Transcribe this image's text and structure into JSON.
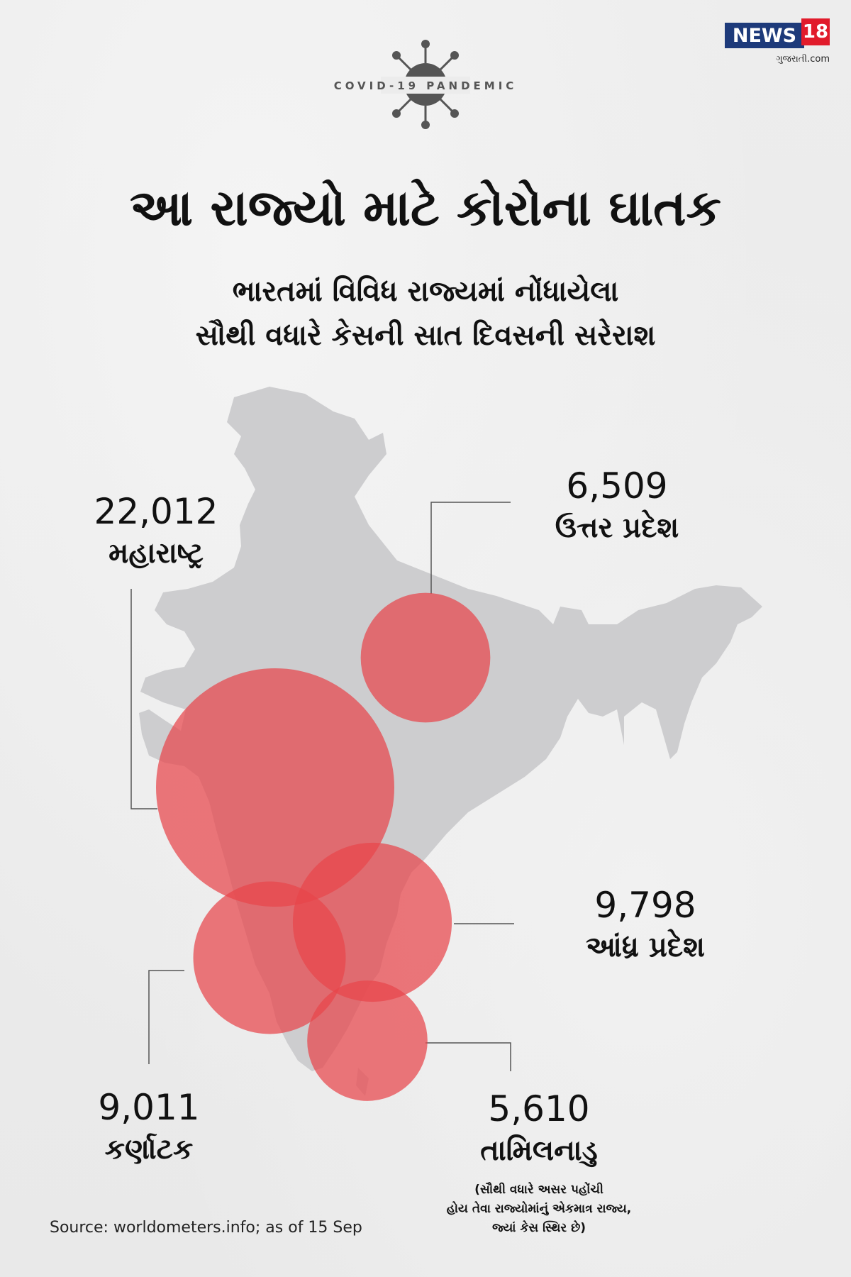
{
  "header": {
    "badge_text": "COVID-19 PANDEMIC",
    "logo_main": "NEWS",
    "logo_number": "18",
    "logo_sub": "ગુજરાતી.com"
  },
  "title": "આ રાજ્યો માટે કોરોના ઘાતક",
  "subtitle": [
    "ભારતમાં વિવિધ રાજ્યમાં નોંધાયેલા",
    "સૌથી વધારે કેસની સાત દિવસની સરેરાશ"
  ],
  "states": [
    {
      "id": "maharashtra",
      "value": "22,012",
      "name": "મહારાષ્ટ્ર",
      "cases": 22012
    },
    {
      "id": "uttar-pradesh",
      "value": "6,509",
      "name": "ઉત્તર પ્રદેશ",
      "cases": 6509
    },
    {
      "id": "andhra-pradesh",
      "value": "9,798",
      "name": "આંધ્ર પ્રદેશ",
      "cases": 9798
    },
    {
      "id": "karnataka",
      "value": "9,011",
      "name": "કર્ણાટક",
      "cases": 9011
    },
    {
      "id": "tamil-nadu",
      "value": "5,610",
      "name": "તામિલનાડુ",
      "cases": 5610
    }
  ],
  "note": [
    "(સૌથી વધારે અસર પહોંચી",
    "હોય તેવા રાજ્યોમાંનું એકમાત્ર રાજ્ય,",
    "જ્યાં કેસ સ્થિર છે)"
  ],
  "source": "Source: worldometers.info; as of 15 Sep",
  "colors": {
    "bubble": "#e8454b",
    "map": "#cdcdcf",
    "background": "#ececec",
    "logo_blue": "#1d3a7a",
    "logo_red": "#e11b2b"
  }
}
